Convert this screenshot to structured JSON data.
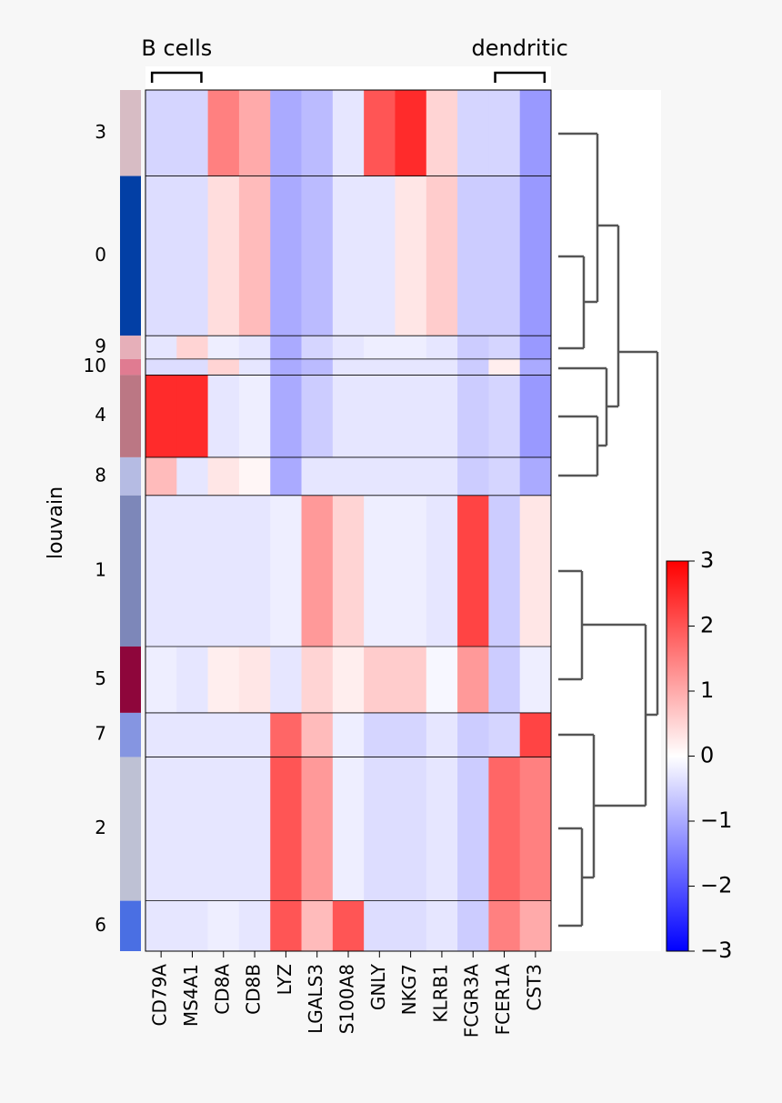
{
  "chart_data": {
    "type": "heatmap",
    "ylabel": "louvain",
    "categories": [
      "3",
      "0",
      "9",
      "10",
      "4",
      "8",
      "1",
      "5",
      "7",
      "2",
      "6"
    ],
    "counts": [
      70,
      130,
      19,
      13,
      67,
      31,
      123,
      54,
      36,
      117,
      41
    ],
    "category_colors": [
      "#d7bcc4",
      "#023fa5",
      "#e6afb9",
      "#e07b91",
      "#bb7784",
      "#b5bbe3",
      "#7d87b9",
      "#8e063b",
      "#8595e1",
      "#bec1d4",
      "#4a6fe3"
    ],
    "genes": [
      "CD79A",
      "MS4A1",
      "CD8A",
      "CD8B",
      "LYZ",
      "LGALS3",
      "S100A8",
      "GNLY",
      "NKG7",
      "KLRB1",
      "FCGR3A",
      "FCER1A",
      "CST3"
    ],
    "gene_groups": [
      {
        "label": "B cells",
        "genes": [
          "CD79A",
          "MS4A1"
        ]
      },
      {
        "label": "dendritic",
        "genes": [
          "FCER1A",
          "CST3"
        ]
      }
    ],
    "values": [
      [
        -0.5,
        -0.5,
        1.5,
        1,
        -1,
        -0.8,
        -0.3,
        2,
        2.5,
        0.5,
        -0.5,
        -0.5,
        -1.2
      ],
      [
        -0.4,
        -0.4,
        0.4,
        0.8,
        -1,
        -0.8,
        -0.3,
        -0.3,
        0.3,
        0.6,
        -0.6,
        -0.6,
        -1.2
      ],
      [
        -0.3,
        0.5,
        -0.2,
        -0.3,
        -1,
        -0.5,
        -0.3,
        -0.2,
        -0.2,
        -0.3,
        -0.6,
        -0.5,
        -1.2
      ],
      [
        -0.4,
        -0.4,
        0.5,
        -0.3,
        -1,
        -0.8,
        -0.3,
        -0.3,
        -0.3,
        -0.3,
        -0.6,
        0.2,
        -1
      ],
      [
        2.5,
        2.5,
        -0.3,
        -0.2,
        -1,
        -0.6,
        -0.3,
        -0.3,
        -0.3,
        -0.3,
        -0.6,
        -0.5,
        -1.2
      ],
      [
        0.8,
        -0.3,
        0.3,
        0.1,
        -1,
        -0.3,
        -0.3,
        -0.3,
        -0.3,
        -0.3,
        -0.6,
        -0.5,
        -1
      ],
      [
        -0.3,
        -0.3,
        -0.3,
        -0.3,
        -0.2,
        1.2,
        0.5,
        -0.2,
        -0.2,
        -0.3,
        2.2,
        -0.6,
        0.3
      ],
      [
        -0.2,
        -0.3,
        0.2,
        0.3,
        -0.3,
        0.5,
        0.2,
        0.6,
        0.6,
        -0.1,
        1.2,
        -0.6,
        -0.2
      ],
      [
        -0.3,
        -0.3,
        -0.3,
        -0.3,
        1.8,
        0.8,
        -0.2,
        -0.5,
        -0.5,
        -0.3,
        -0.6,
        -0.5,
        2.2
      ],
      [
        -0.3,
        -0.3,
        -0.3,
        -0.3,
        2,
        1.2,
        -0.2,
        -0.4,
        -0.4,
        -0.3,
        -0.6,
        1.8,
        1.5
      ],
      [
        -0.3,
        -0.3,
        -0.2,
        -0.3,
        2,
        0.8,
        2,
        -0.4,
        -0.4,
        -0.3,
        -0.6,
        1.5,
        1
      ]
    ],
    "colormap": "bwr",
    "colorbar": {
      "vlim": [
        -3,
        3
      ],
      "ticks": [
        {
          "value": -3,
          "label": "−3"
        },
        {
          "value": -2,
          "label": "−2"
        },
        {
          "value": -1,
          "label": "−1"
        },
        0,
        1,
        2,
        3
      ]
    }
  }
}
